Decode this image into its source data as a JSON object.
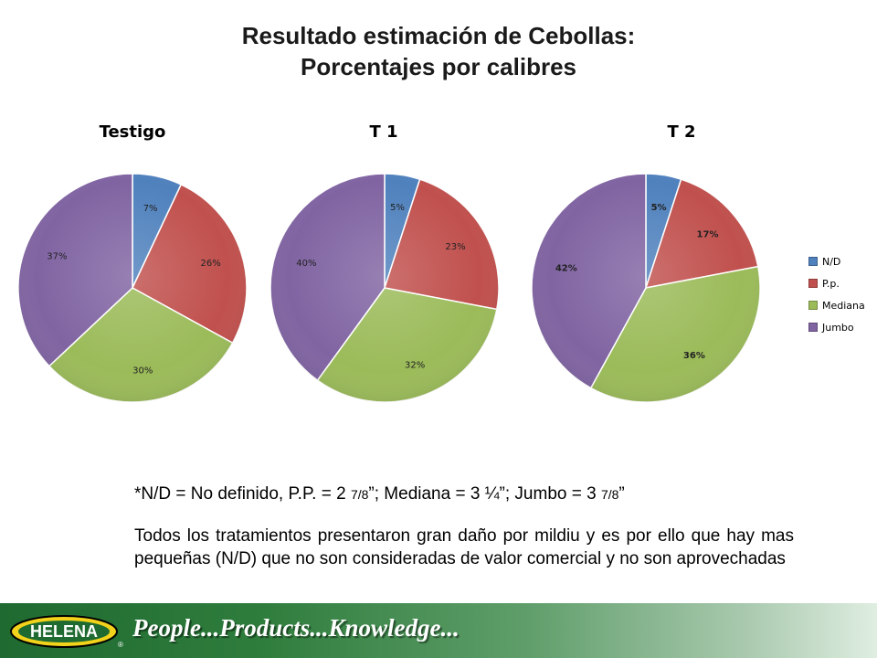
{
  "title_line1": "Resultado estimación de Cebollas:",
  "title_line2": "Porcentajes por calibres",
  "chart_data": [
    {
      "type": "pie",
      "title": "Testigo",
      "categories": [
        "N/D",
        "P.p.",
        "Mediana",
        "Jumbo"
      ],
      "values": [
        7,
        26,
        30,
        37
      ],
      "labels": [
        "7%",
        "26%",
        "30%",
        "37%"
      ]
    },
    {
      "type": "pie",
      "title": "T 1",
      "categories": [
        "N/D",
        "P.p.",
        "Mediana",
        "Jumbo"
      ],
      "values": [
        5,
        23,
        32,
        40
      ],
      "labels": [
        "5%",
        "23%",
        "32%",
        "40%"
      ]
    },
    {
      "type": "pie",
      "title": "T 2",
      "categories": [
        "N/D",
        "P.p.",
        "Mediana",
        "Jumbo"
      ],
      "values": [
        5,
        17,
        36,
        42
      ],
      "labels": [
        "5%",
        "17%",
        "36%",
        "42%"
      ]
    }
  ],
  "legend": [
    {
      "label": "N/D",
      "color": "#4f81bd"
    },
    {
      "label": "P.p.",
      "color": "#c0504d"
    },
    {
      "label": "Mediana",
      "color": "#9bbb59"
    },
    {
      "label": "Jumbo",
      "color": "#8064a2"
    }
  ],
  "legend_position": "right",
  "note1": {
    "a": "*N/D = No definido, P.P. = 2 ",
    "f1": "7/8",
    "b": "”; Mediana = 3 ¼”; Jumbo = 3 ",
    "f2": "7/8",
    "c": "”"
  },
  "note2": "Todos los tratamientos presentaron gran daño por mildiu y es por ello que hay mas pequeñas (N/D) que no son consideradas de valor comercial y no son aprovechadas",
  "footer": {
    "logo_text": "HELENA",
    "tagline": "People...Products...Knowledge...",
    "trademark": "®"
  }
}
